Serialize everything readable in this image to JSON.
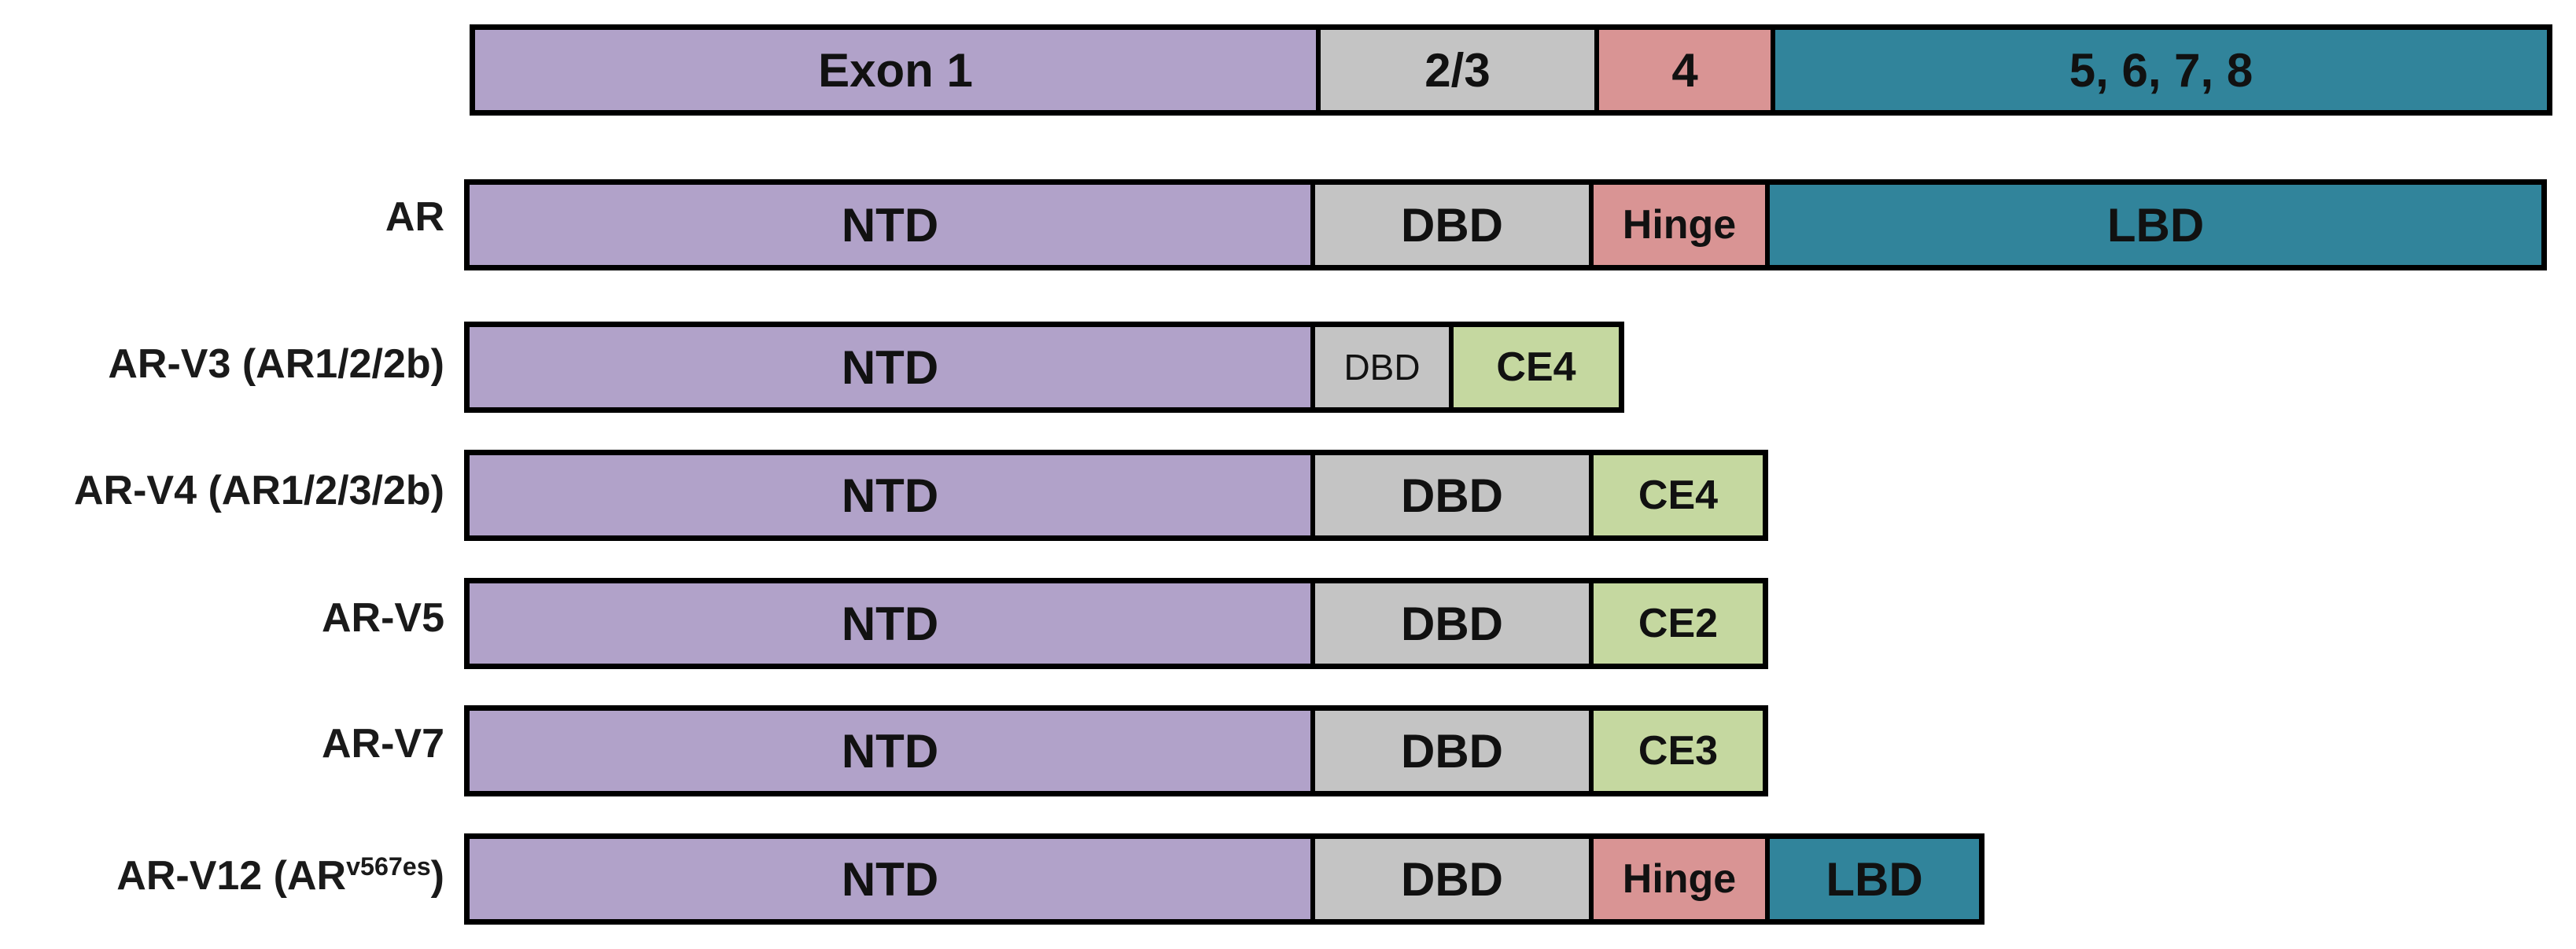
{
  "colors": {
    "purple": "#b1a2c9",
    "gray": "#c4c4c4",
    "pink": "#d99494",
    "teal": "#31849b",
    "green": "#c5d8a0",
    "border": "#000000"
  },
  "rows": [
    {
      "id": "exons",
      "label": "",
      "segments": [
        {
          "text": "Exon 1",
          "color": "purple"
        },
        {
          "text": "2/3",
          "color": "gray"
        },
        {
          "text": "4",
          "color": "pink"
        },
        {
          "text": "5, 6, 7, 8",
          "color": "teal"
        }
      ]
    },
    {
      "id": "ar",
      "label": "AR",
      "segments": [
        {
          "text": "NTD",
          "color": "purple"
        },
        {
          "text": "DBD",
          "color": "gray"
        },
        {
          "text": "Hinge",
          "color": "pink"
        },
        {
          "text": "LBD",
          "color": "teal"
        }
      ]
    },
    {
      "id": "ar-v3",
      "label": "AR-V3 (AR1/2/2b)",
      "segments": [
        {
          "text": "NTD",
          "color": "purple"
        },
        {
          "text": "DBD",
          "color": "gray"
        },
        {
          "text": "CE4",
          "color": "green"
        }
      ]
    },
    {
      "id": "ar-v4",
      "label": "AR-V4 (AR1/2/3/2b)",
      "segments": [
        {
          "text": "NTD",
          "color": "purple"
        },
        {
          "text": "DBD",
          "color": "gray"
        },
        {
          "text": "CE4",
          "color": "green"
        }
      ]
    },
    {
      "id": "ar-v5",
      "label": "AR-V5",
      "segments": [
        {
          "text": "NTD",
          "color": "purple"
        },
        {
          "text": "DBD",
          "color": "gray"
        },
        {
          "text": "CE2",
          "color": "green"
        }
      ]
    },
    {
      "id": "ar-v7",
      "label": "AR-V7",
      "segments": [
        {
          "text": "NTD",
          "color": "purple"
        },
        {
          "text": "DBD",
          "color": "gray"
        },
        {
          "text": "CE3",
          "color": "green"
        }
      ]
    },
    {
      "id": "ar-v12",
      "label": "AR-V12 (AR",
      "label_sup": "v567es",
      "label_suffix": ")",
      "segments": [
        {
          "text": "NTD",
          "color": "purple"
        },
        {
          "text": "DBD",
          "color": "gray"
        },
        {
          "text": "Hinge",
          "color": "pink"
        },
        {
          "text": "LBD",
          "color": "teal"
        }
      ]
    }
  ]
}
